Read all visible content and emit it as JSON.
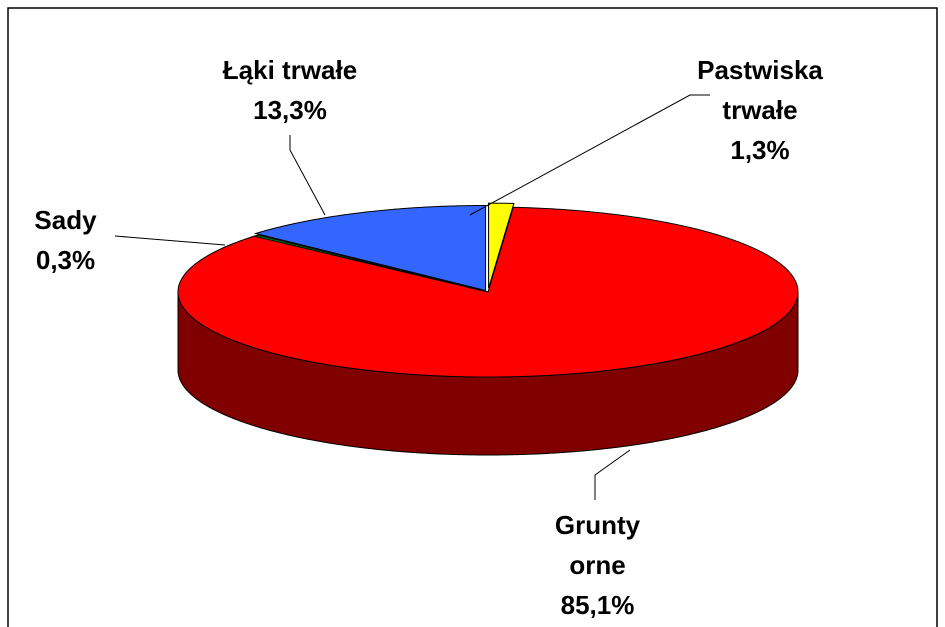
{
  "chart_data": {
    "type": "pie3d",
    "categories": [
      "Grunty orne",
      "Sady",
      "Łąki trwałe",
      "Pastwiska trwałe"
    ],
    "values": [
      85.1,
      0.3,
      13.3,
      1.3
    ],
    "value_labels": [
      "85,1%",
      "0,3%",
      "13,3%",
      "1,3%"
    ],
    "colors": [
      "#ff0000",
      "#008000",
      "#3366ff",
      "#ffff00"
    ],
    "side_colors": [
      "#800000",
      "#004000",
      "#1a3380",
      "#808000"
    ]
  }
}
